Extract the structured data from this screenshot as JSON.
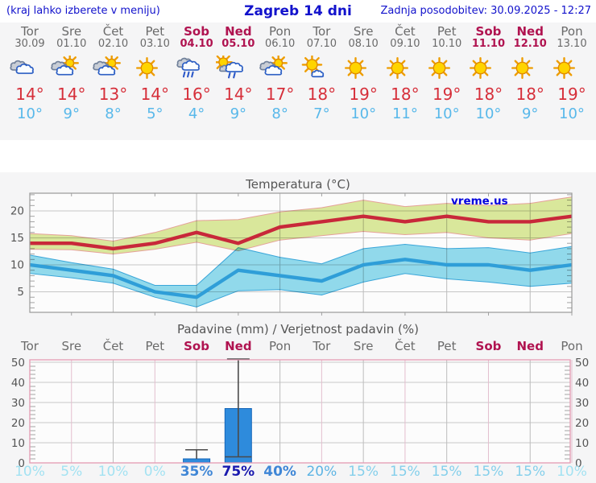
{
  "header": {
    "left_note": "(kraj lahko izberete v meniju)",
    "title": "Zagreb 14 dni",
    "updated": "Zadnja posodobitev: 30.09.2025 - 12:27"
  },
  "watermark": "vreme.us",
  "colors": {
    "header_blue": "#1212cc",
    "weekday_text": "#6a6a6a",
    "weekend_text": "#b01350",
    "high_temp": "#d62f3a",
    "low_temp": "#58b8ea",
    "chart_title": "#555555",
    "axis_label": "#555555",
    "temp_frame": "#999999",
    "grid_gray": "#bcbcbc",
    "grid_pink": "#e3bece",
    "precip_frame": "#e59ab2",
    "max_line": "#c8283a",
    "max_band": "#dcea9d",
    "max_band_edge": "#e8a39b",
    "min_line": "#2f9ed8",
    "min_band": "#93dcee",
    "min_band_edge": "#3aa8dc",
    "bar_fill": "#2e8bdc",
    "bar_edge": "#1565b8",
    "whisker": "#4a4a4a",
    "prob_scale": {
      "low": "#a3e2f2",
      "mid_low": "#84cfeb",
      "mid": "#5db4e4",
      "high": "#3f86d6",
      "very_high": "#1818ae"
    }
  },
  "days": [
    {
      "name": "Tor",
      "date": "30.09",
      "weekend": false,
      "icon": "cloudy",
      "high": "14°",
      "low": "10°",
      "precip_prob": "10%"
    },
    {
      "name": "Sre",
      "date": "01.10",
      "weekend": false,
      "icon": "partly-cloudy",
      "high": "14°",
      "low": "9°",
      "precip_prob": "5%"
    },
    {
      "name": "Čet",
      "date": "02.10",
      "weekend": false,
      "icon": "partly-cloudy",
      "high": "13°",
      "low": "8°",
      "precip_prob": "10%"
    },
    {
      "name": "Pet",
      "date": "03.10",
      "weekend": false,
      "icon": "sunny",
      "high": "14°",
      "low": "5°",
      "precip_prob": "0%"
    },
    {
      "name": "Sob",
      "date": "04.10",
      "weekend": true,
      "icon": "rain",
      "high": "16°",
      "low": "4°",
      "precip_prob": "35%"
    },
    {
      "name": "Ned",
      "date": "05.10",
      "weekend": true,
      "icon": "sun-shower",
      "high": "14°",
      "low": "9°",
      "precip_prob": "75%"
    },
    {
      "name": "Pon",
      "date": "06.10",
      "weekend": false,
      "icon": "partly-cloudy",
      "high": "17°",
      "low": "8°",
      "precip_prob": "40%"
    },
    {
      "name": "Tor",
      "date": "07.10",
      "weekend": false,
      "icon": "mostly-sunny",
      "high": "18°",
      "low": "7°",
      "precip_prob": "20%"
    },
    {
      "name": "Sre",
      "date": "08.10",
      "weekend": false,
      "icon": "sunny",
      "high": "19°",
      "low": "10°",
      "precip_prob": "15%"
    },
    {
      "name": "Čet",
      "date": "09.10",
      "weekend": false,
      "icon": "sunny",
      "high": "18°",
      "low": "11°",
      "precip_prob": "15%"
    },
    {
      "name": "Pet",
      "date": "10.10",
      "weekend": false,
      "icon": "sunny",
      "high": "19°",
      "low": "10°",
      "precip_prob": "15%"
    },
    {
      "name": "Sob",
      "date": "11.10",
      "weekend": true,
      "icon": "sunny",
      "high": "18°",
      "low": "10°",
      "precip_prob": "15%"
    },
    {
      "name": "Ned",
      "date": "12.10",
      "weekend": true,
      "icon": "sunny",
      "high": "18°",
      "low": "9°",
      "precip_prob": "15%"
    },
    {
      "name": "Pon",
      "date": "13.10",
      "weekend": false,
      "icon": "sunny",
      "high": "19°",
      "low": "10°",
      "precip_prob": "10%"
    }
  ],
  "chart_data": [
    {
      "type": "line",
      "title": "Temperatura (°C)",
      "categories": [
        "Tor",
        "Sre",
        "Čet",
        "Pet",
        "Sob",
        "Ned",
        "Pon",
        "Tor",
        "Sre",
        "Čet",
        "Pet",
        "Sob",
        "Ned",
        "Pon"
      ],
      "ylabel": "°C",
      "ylim": [
        1,
        23.3
      ],
      "yticks": [
        5,
        10,
        15,
        20
      ],
      "grid": true,
      "series": [
        {
          "name": "max-temp",
          "values": [
            14,
            14,
            13,
            14,
            16,
            14,
            17,
            18,
            19,
            18,
            19,
            18,
            18,
            19
          ]
        },
        {
          "name": "min-temp",
          "values": [
            10,
            9,
            8,
            5,
            4,
            9,
            8,
            7,
            10,
            11,
            10,
            10,
            9,
            10
          ]
        }
      ],
      "bands": [
        {
          "name": "max-range",
          "upper": [
            15.8,
            15.4,
            14.4,
            16.0,
            18.2,
            18.4,
            19.8,
            20.6,
            22.0,
            20.8,
            21.4,
            21.0,
            21.4,
            22.6
          ],
          "lower": [
            12.9,
            12.8,
            12.0,
            12.9,
            14.2,
            12.6,
            14.6,
            15.4,
            16.2,
            15.6,
            16.0,
            15.0,
            14.6,
            15.8
          ]
        },
        {
          "name": "min-range",
          "upper": [
            11.8,
            10.4,
            9.2,
            6.2,
            6.2,
            13.2,
            11.4,
            10.2,
            13.0,
            13.8,
            13.0,
            13.2,
            12.2,
            13.4
          ],
          "lower": [
            8.4,
            7.6,
            6.6,
            4.0,
            2.2,
            5.2,
            5.4,
            4.4,
            6.8,
            8.4,
            7.4,
            6.8,
            6.0,
            6.6
          ]
        }
      ]
    },
    {
      "type": "bar",
      "title": "Padavine (mm) / Verjetnost padavin (%)",
      "categories": [
        "Tor",
        "Sre",
        "Čet",
        "Pet",
        "Sob",
        "Ned",
        "Pon",
        "Tor",
        "Sre",
        "Čet",
        "Pet",
        "Sob",
        "Ned",
        "Pon"
      ],
      "values": [
        0,
        0,
        0,
        0,
        2,
        27,
        0,
        0,
        0,
        0,
        0,
        0,
        0,
        0
      ],
      "whiskers": [
        {
          "day_index": 4,
          "range_min": 2,
          "range_max": 6.5
        },
        {
          "day_index": 5,
          "range_min": 3,
          "range_max": 52
        }
      ],
      "probabilities_pct": [
        10,
        5,
        10,
        0,
        35,
        75,
        40,
        20,
        15,
        15,
        15,
        15,
        15,
        10
      ],
      "ylim": [
        0,
        51
      ],
      "yticks": [
        0,
        10,
        20,
        30,
        40,
        50
      ],
      "grid": true
    }
  ]
}
